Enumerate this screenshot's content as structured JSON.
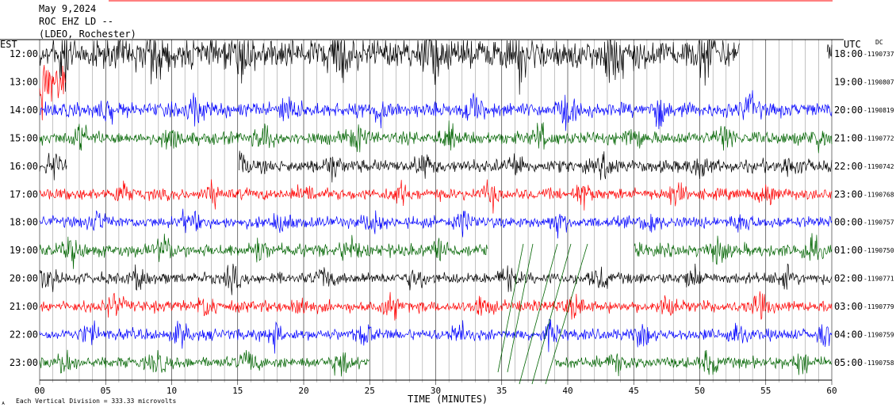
{
  "header": {
    "date": "May 9,2024",
    "station": "ROC EHZ LD --",
    "network": "(LDEO, Rochester)"
  },
  "left_axis_label": "EST",
  "right_axis_label": "UTC",
  "right_axis_sublabel": "DC",
  "footer": {
    "xlabel": "TIME (MINUTES)",
    "scale_note": "Each Vertical Division =  333.33 microvolts",
    "corner_mark": "ᴀ"
  },
  "colors": {
    "black": "#000000",
    "red": "#ff0000",
    "blue": "#0000ff",
    "green": "#006400"
  },
  "chart_data": {
    "type": "line",
    "xlim": [
      0,
      60
    ],
    "x_ticks": [
      "00",
      "05",
      "10",
      "15",
      "20",
      "25",
      "30",
      "35",
      "40",
      "45",
      "50",
      "55",
      "60"
    ],
    "grid": "vertical lines every minute",
    "rows": [
      {
        "est": "12:00",
        "utc": "18:00",
        "dc": "-1190737",
        "color": "black",
        "amp": 1.6
      },
      {
        "est": "13:00",
        "utc": "19:00",
        "dc": "-1190807",
        "color": "red",
        "amp": 1.0
      },
      {
        "est": "14:00",
        "utc": "20:00",
        "dc": "-1190819",
        "color": "blue",
        "amp": 1.0
      },
      {
        "est": "15:00",
        "utc": "21:00",
        "dc": "-1190772",
        "color": "green",
        "amp": 0.9
      },
      {
        "est": "16:00",
        "utc": "22:00",
        "dc": "-1190742",
        "color": "black",
        "amp": 0.9
      },
      {
        "est": "17:00",
        "utc": "23:00",
        "dc": "-1190768",
        "color": "red",
        "amp": 0.8
      },
      {
        "est": "18:00",
        "utc": "00:00",
        "dc": "-1190757",
        "color": "blue",
        "amp": 0.8
      },
      {
        "est": "19:00",
        "utc": "01:00",
        "dc": "-1190750",
        "color": "green",
        "amp": 0.9
      },
      {
        "est": "20:00",
        "utc": "02:00",
        "dc": "-1190771",
        "color": "black",
        "amp": 0.8
      },
      {
        "est": "21:00",
        "utc": "03:00",
        "dc": "-1190779",
        "color": "red",
        "amp": 0.8
      },
      {
        "est": "22:00",
        "utc": "04:00",
        "dc": "-1190759",
        "color": "blue",
        "amp": 0.8
      },
      {
        "est": "23:00",
        "utc": "05:00",
        "dc": "-1190758",
        "color": "green",
        "amp": 0.8
      }
    ],
    "gaps_minutes": [
      {
        "row": 0,
        "from": 53,
        "to": 59.6
      },
      {
        "row": 1,
        "from": 2,
        "to": 60
      },
      {
        "row": 4,
        "from": 2.1,
        "to": 15.1
      },
      {
        "row": 7,
        "from": 34,
        "to": 45
      },
      {
        "row": 11,
        "from": 25,
        "to": 39
      }
    ]
  }
}
